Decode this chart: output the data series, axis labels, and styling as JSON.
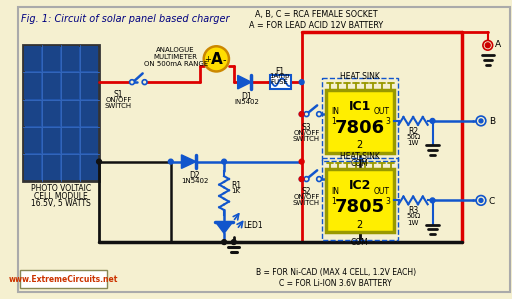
{
  "background_color": "#f5f0d0",
  "title": "Fig. 1: Circuit of solar panel based charger",
  "title_color": "#000080",
  "title_fontsize": 7.5,
  "website": "www.ExtremeCircuits.net",
  "top_label": "A, B, C = RCA FEMALE SOCKET\nA = FOR LEAD ACID 12V BATTERY",
  "bottom_label": "B = FOR Ni-CAD (MAX 4 CELL, 1.2V EACH)\nC = FOR Li-ION 3.6V BATTERY",
  "wire_red": "#dd0000",
  "wire_blue": "#1155cc",
  "wire_black": "#111111",
  "ic_yellow": "#ffee00",
  "ic_border": "#999900",
  "ammeter_fill": "#ffdd00",
  "ammeter_border": "#cc8800"
}
